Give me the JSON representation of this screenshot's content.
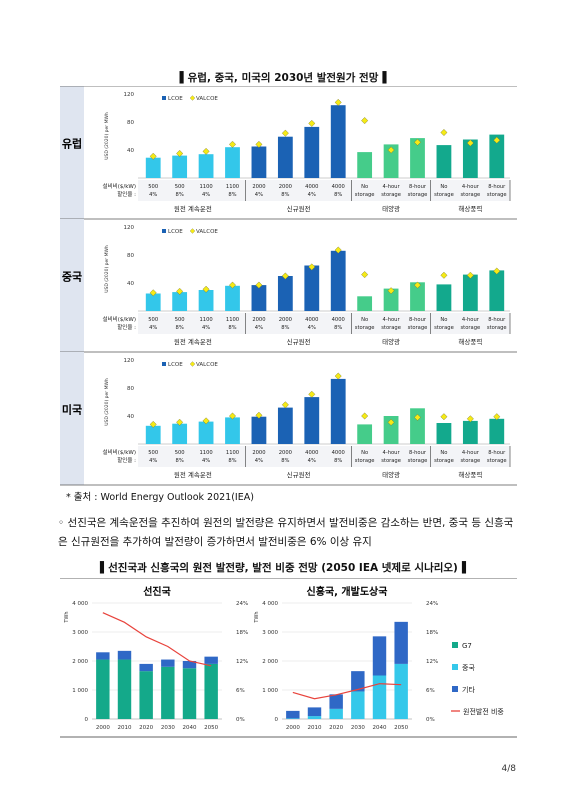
{
  "title1": "▌유럽, 중국, 미국의 2030년 발전원가 전망▐",
  "ylabel": "USD (2020) per MWh",
  "legend": [
    "LCOE",
    "VALCOE"
  ],
  "row_labels": [
    "설비비($/kW)",
    "할인율 :"
  ],
  "columns": [
    {
      "cost": "500",
      "rate": "4%"
    },
    {
      "cost": "500",
      "rate": "8%"
    },
    {
      "cost": "1100",
      "rate": "4%"
    },
    {
      "cost": "1100",
      "rate": "8%"
    },
    {
      "cost": "2000",
      "rate": "4%"
    },
    {
      "cost": "2000",
      "rate": "8%"
    },
    {
      "cost": "4000",
      "rate": "4%"
    },
    {
      "cost": "4000",
      "rate": "8%"
    },
    {
      "cost": "No",
      "rate": "storage"
    },
    {
      "cost": "4-hour",
      "rate": "storage"
    },
    {
      "cost": "8-hour",
      "rate": "storage"
    },
    {
      "cost": "No",
      "rate": "storage"
    },
    {
      "cost": "4-hour",
      "rate": "storage"
    },
    {
      "cost": "8-hour",
      "rate": "storage"
    }
  ],
  "groups": [
    "원전 계속운전",
    "신규원전",
    "태양광",
    "해상풍력"
  ],
  "chart_data": [
    {
      "type": "bar",
      "region": "유럽",
      "ylim": [
        0,
        120
      ],
      "yticks": [
        40,
        80,
        120
      ],
      "series": [
        {
          "name": "LCOE",
          "values": [
            29,
            32,
            34,
            44,
            45,
            59,
            73,
            104,
            37,
            48,
            57,
            47,
            55,
            62
          ]
        },
        {
          "name": "VALCOE",
          "values": [
            31,
            35,
            38,
            48,
            48,
            64,
            78,
            108,
            82,
            40,
            51,
            65,
            50,
            54
          ]
        }
      ]
    },
    {
      "type": "bar",
      "region": "중국",
      "ylim": [
        0,
        120
      ],
      "yticks": [
        40,
        80,
        120
      ],
      "series": [
        {
          "name": "LCOE",
          "values": [
            25,
            27,
            30,
            36,
            37,
            50,
            65,
            86,
            21,
            32,
            41,
            38,
            52,
            58
          ]
        },
        {
          "name": "VALCOE",
          "values": [
            26,
            28,
            31,
            37,
            37,
            50,
            63,
            87,
            52,
            29,
            37,
            51,
            51,
            57
          ]
        }
      ]
    },
    {
      "type": "bar",
      "region": "미국",
      "ylim": [
        0,
        120
      ],
      "yticks": [
        40,
        80,
        120
      ],
      "series": [
        {
          "name": "LCOE",
          "values": [
            26,
            29,
            32,
            38,
            39,
            52,
            67,
            93,
            28,
            40,
            51,
            30,
            33,
            36
          ]
        },
        {
          "name": "VALCOE",
          "values": [
            28,
            31,
            33,
            40,
            41,
            56,
            71,
            97,
            40,
            31,
            38,
            39,
            36,
            39
          ]
        }
      ]
    },
    {
      "type": "bar",
      "title": "선진국",
      "ylabel": "TWh",
      "x": [
        "2000",
        "2010",
        "2020",
        "2030",
        "2040",
        "2050"
      ],
      "ylim": [
        0,
        4000
      ],
      "y2lim": [
        0,
        24
      ],
      "yticks": [
        "0",
        "1 000",
        "2 000",
        "3 000",
        "4 000"
      ],
      "y2ticks": [
        "0%",
        "6%",
        "12%",
        "18%",
        "24%"
      ],
      "series": [
        {
          "name": "G7",
          "values": [
            2050,
            2050,
            1650,
            1800,
            1750,
            1900
          ]
        },
        {
          "name": "중국",
          "values": [
            0,
            0,
            0,
            0,
            0,
            0
          ]
        },
        {
          "name": "기타",
          "values": [
            250,
            300,
            250,
            250,
            250,
            250
          ]
        },
        {
          "name": "원전발전 비중",
          "axis": "y2",
          "values": [
            22,
            20,
            17,
            15,
            12,
            11
          ]
        }
      ]
    },
    {
      "type": "bar",
      "title": "신흥국, 개발도상국",
      "ylabel": "TWh",
      "x": [
        "2000",
        "2010",
        "2020",
        "2030",
        "2040",
        "2050"
      ],
      "ylim": [
        0,
        4000
      ],
      "y2lim": [
        0,
        24
      ],
      "yticks": [
        "0",
        "1 000",
        "2 000",
        "3 000",
        "4 000"
      ],
      "y2ticks": [
        "0%",
        "6%",
        "12%",
        "18%",
        "24%"
      ],
      "series": [
        {
          "name": "G7",
          "values": [
            0,
            0,
            0,
            0,
            0,
            0
          ]
        },
        {
          "name": "중국",
          "values": [
            20,
            100,
            350,
            950,
            1500,
            1900
          ]
        },
        {
          "name": "기타",
          "values": [
            260,
            300,
            500,
            700,
            1350,
            1450
          ]
        },
        {
          "name": "원전발전 비중",
          "axis": "y2",
          "values": [
            5.5,
            4.2,
            5.0,
            6.1,
            7.3,
            7.1
          ]
        }
      ]
    }
  ],
  "source": "* 출처 : World Energy Outlook 2021(IEA)",
  "paragraph": "◦ 선진국은 계속운전을 추진하여 원전의 발전량은 유지하면서 발전비중은 감소하는 반면, 중국 등 신흥국은 신규원전을 추가하여 발전량이 증가하면서 발전비중은 6% 이상 유지",
  "title2": "▌선진국과 신흥국의 원전 발전량, 발전 비중 전망 (2050 IEA 넷제로 시나리오)▐",
  "page": "4/8",
  "colors": {
    "lcoe_light": "#33c7ea",
    "lcoe_dark": "#1b62b4",
    "lcoe_solar": "#45cc8a",
    "lcoe_wind": "#13a98d",
    "valcoe": "#f5ea16",
    "g7": "#14a98a",
    "china": "#35c8ea",
    "other": "#2f68c6",
    "share": "#e8433c",
    "row_bg": "#dfe5f0"
  }
}
